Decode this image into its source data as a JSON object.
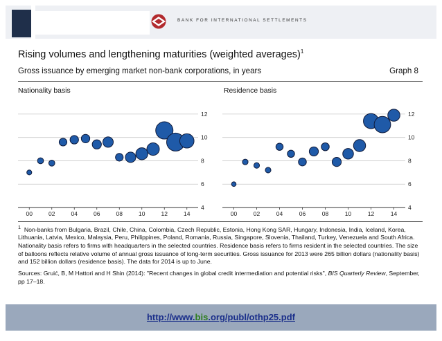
{
  "header": {
    "bank_name": "BANK FOR INTERNATIONAL SETTLEMENTS",
    "brand_color": "#b22a2e",
    "dark_color": "#1f2f4a"
  },
  "figure": {
    "title": "Rising volumes and lengthening maturities (weighted averages)",
    "title_sup": "1",
    "subtitle": "Gross issuance by emerging market non-bank corporations, in years",
    "graph_number": "Graph 8"
  },
  "chart_data": [
    {
      "type": "scatter",
      "variant": "bubble",
      "title": "Nationality basis",
      "x_tick_labels": [
        "00",
        "02",
        "04",
        "06",
        "08",
        "10",
        "12",
        "14"
      ],
      "x_ticks": [
        2000,
        2002,
        2004,
        2006,
        2008,
        2010,
        2012,
        2014
      ],
      "xlim": [
        1999,
        2015
      ],
      "ylim": [
        4,
        13
      ],
      "y_ticks": [
        4,
        6,
        8,
        10,
        12
      ],
      "y_tick_labels": [
        "4",
        "6",
        "8",
        "10",
        "12"
      ],
      "y_axis_side": "right",
      "grid": "horizontal",
      "bubble_fill": "#1f5aa8",
      "x": [
        2000,
        2001,
        2002,
        2003,
        2004,
        2005,
        2006,
        2007,
        2008,
        2009,
        2010,
        2011,
        2012,
        2013,
        2014
      ],
      "y": [
        7.0,
        8.0,
        7.8,
        9.6,
        9.8,
        9.9,
        9.4,
        9.6,
        8.3,
        8.3,
        8.6,
        9.0,
        10.6,
        9.6,
        9.7
      ],
      "size": [
        2,
        3,
        3,
        5,
        6,
        6,
        7,
        9,
        5,
        9,
        12,
        13,
        25,
        27,
        17
      ]
    },
    {
      "type": "scatter",
      "variant": "bubble",
      "title": "Residence basis",
      "x_tick_labels": [
        "00",
        "02",
        "04",
        "06",
        "08",
        "10",
        "12",
        "14"
      ],
      "x_ticks": [
        2000,
        2002,
        2004,
        2006,
        2008,
        2010,
        2012,
        2014
      ],
      "xlim": [
        1999,
        2015
      ],
      "ylim": [
        4,
        13
      ],
      "y_ticks": [
        4,
        6,
        8,
        10,
        12
      ],
      "y_tick_labels": [
        "4",
        "6",
        "8",
        "10",
        "12"
      ],
      "y_axis_side": "right",
      "grid": "horizontal",
      "bubble_fill": "#1f5aa8",
      "x": [
        2000,
        2001,
        2002,
        2003,
        2004,
        2005,
        2006,
        2007,
        2008,
        2009,
        2010,
        2011,
        2012,
        2013,
        2014
      ],
      "y": [
        6.0,
        7.9,
        7.6,
        7.2,
        9.2,
        8.6,
        7.9,
        8.8,
        9.2,
        7.9,
        8.6,
        9.3,
        11.4,
        11.1,
        11.9
      ],
      "size": [
        1,
        1.5,
        1.5,
        1.5,
        2.5,
        2.5,
        3,
        4,
        3,
        4,
        5.5,
        7,
        11,
        13,
        7
      ]
    }
  ],
  "notes": {
    "footnote_marker": "1",
    "footnote_text": "Non-banks from Bulgaria, Brazil, Chile, China, Colombia, Czech Republic, Estonia, Hong Kong SAR, Hungary, Indonesia, India, Iceland, Korea, Lithuania, Latvia, Mexico, Malaysia, Peru, Philippines, Poland, Romania, Russia, Singapore, Slovenia, Thailand, Turkey, Venezuela and South Africa. Nationality basis refers to firms with headquarters in the selected countries. Residence basis refers to firms resident in the selected countries. The size of balloons reflects relative volume of annual gross issuance of long-term securities. Gross issuance for 2013 were 265 billion dollars (nationality basis) and 152 billion dollars (residence basis). The data for 2014 is up to June.",
    "sources_lead": "Sources: Gruić, B, M Hattori and H Shin (2014): \"Recent changes in global credit intermediation and potential risks\",",
    "sources_journal": "BIS Quarterly Review",
    "sources_tail": ", September, pp 17–18."
  },
  "footer": {
    "url_prefix": "http://www.",
    "url_domain": "bis",
    "url_suffix": ".org/publ/othp25.pdf"
  }
}
